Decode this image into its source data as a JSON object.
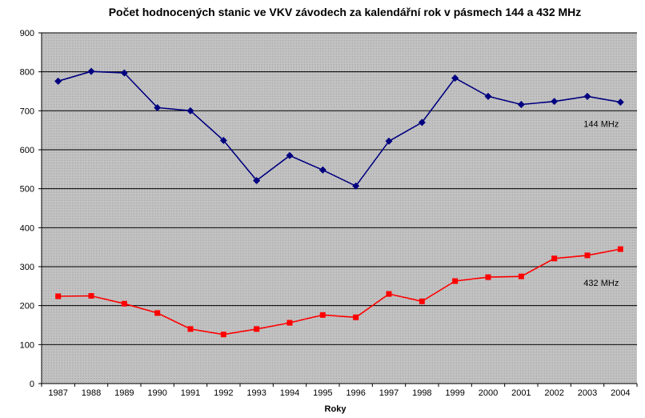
{
  "chart_data": {
    "type": "line",
    "title": "Počet hodnocených stanic ve VKV závodech za kalendářní rok v pásmech 144 a 432 MHz",
    "xlabel": "Roky",
    "ylabel": "",
    "ylim": [
      0,
      900
    ],
    "yticks": [
      0,
      100,
      200,
      300,
      400,
      500,
      600,
      700,
      800,
      900
    ],
    "grid": true,
    "categories": [
      "1987",
      "1988",
      "1989",
      "1990",
      "1991",
      "1992",
      "1993",
      "1994",
      "1995",
      "1996",
      "1997",
      "1998",
      "1999",
      "2000",
      "2001",
      "2002",
      "2003",
      "2004"
    ],
    "series": [
      {
        "name": "144 MHz",
        "color": "#000080",
        "marker": "diamond",
        "values": [
          776,
          801,
          797,
          708,
          700,
          624,
          521,
          585,
          548,
          507,
          622,
          670,
          784,
          737,
          716,
          724,
          737,
          722
        ]
      },
      {
        "name": "432 MHz",
        "color": "#ff0000",
        "marker": "square",
        "values": [
          224,
          225,
          205,
          181,
          140,
          126,
          140,
          156,
          176,
          170,
          230,
          211,
          263,
          273,
          275,
          321,
          329,
          345
        ]
      }
    ]
  }
}
